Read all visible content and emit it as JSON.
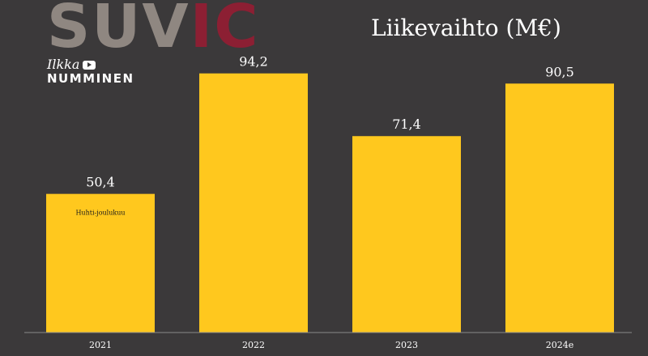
{
  "logo": {
    "part1": "SUV",
    "part2": "IC",
    "colors": {
      "part1": "#8f8781",
      "part2": "#8c1f33"
    }
  },
  "brand": {
    "script": "Ilkka",
    "name": "NUMMINEN",
    "icon": "youtube-play-icon"
  },
  "colors": {
    "background": "#3b393a",
    "bar": "#ffc81e",
    "text": "#ffffff"
  },
  "chart_data": {
    "type": "bar",
    "title": "Liikevaihto (M€)",
    "categories": [
      "2021",
      "2022",
      "2023",
      "2024e"
    ],
    "values": [
      50.4,
      94.2,
      71.4,
      90.5
    ],
    "value_labels": [
      "50,4",
      "94,2",
      "71,4",
      "90,5"
    ],
    "annotations": [
      {
        "category": "2021",
        "text": "Huhti-joulukuu"
      }
    ],
    "xlabel": "",
    "ylabel": "",
    "ylim": [
      0,
      100
    ],
    "grid": false,
    "legend": "none"
  }
}
